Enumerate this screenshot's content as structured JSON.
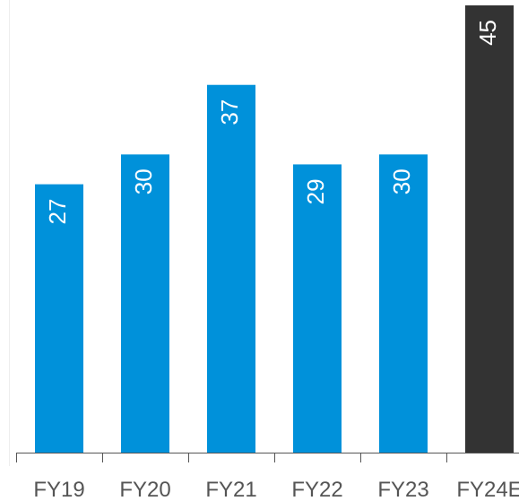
{
  "chart_data": {
    "type": "bar",
    "categories": [
      "FY19",
      "FY20",
      "FY21",
      "FY22",
      "FY23",
      "FY24E"
    ],
    "values": [
      27,
      30,
      37,
      29,
      30,
      45
    ],
    "colors": [
      "#0091da",
      "#0091da",
      "#0091da",
      "#0091da",
      "#0091da",
      "#333333"
    ],
    "ylim": [
      0,
      45
    ]
  }
}
